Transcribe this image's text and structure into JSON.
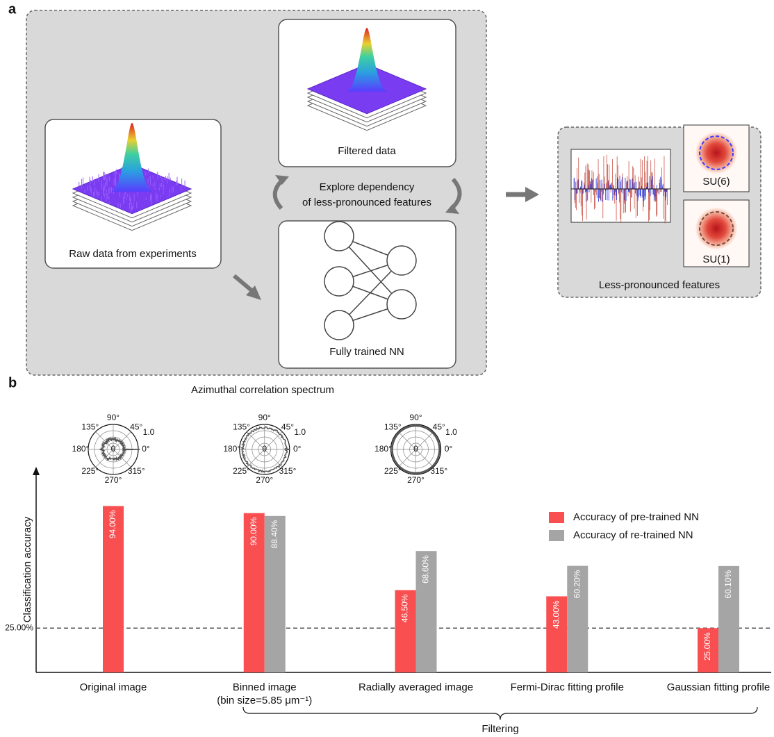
{
  "panel_a": {
    "label": "a",
    "raw_data": "Raw data from experiments",
    "filtered_data": "Filtered data",
    "explore": [
      "Explore dependency",
      "of less-pronounced features"
    ],
    "network": "Fully trained NN",
    "features_title": "Less-pronounced features",
    "su6": "SU(6)",
    "su1": "SU(1)"
  },
  "chart_data": {
    "type": "bar",
    "panel_label": "b",
    "title": "Azimuthal correlation spectrum",
    "y_label": "Classification accuracy",
    "categories": [
      "Original image",
      "Binned image",
      "Radially averaged image",
      "Fermi-Dirac fitting profile",
      "Gaussian fitting profile"
    ],
    "category_notes": [
      null,
      "(bin size=5.85 μm⁻¹)",
      null,
      null,
      null
    ],
    "series": [
      {
        "name": "Accuracy of pre-trained NN",
        "color": "#f94f51",
        "values": [
          94,
          90,
          46.5,
          43,
          25
        ],
        "value_labels": [
          "94.00%",
          "90.00%",
          "46.50%",
          "43.00%",
          "25.00%"
        ]
      },
      {
        "name": "Accuracy of re-trained NN",
        "color": "#a5a5a5",
        "values": [
          null,
          88.4,
          68.6,
          60.2,
          60.1
        ],
        "value_labels": [
          null,
          "88.40%",
          "68.60%",
          "60.20%",
          "60.10%"
        ]
      }
    ],
    "ylim": [
      0,
      115
    ],
    "reference_line": {
      "value": 25,
      "label": "25.00%"
    },
    "group_label": "Filtering",
    "polar": {
      "angle_labels": [
        "0°",
        "45°",
        "90°",
        "135°",
        "180°",
        "225°",
        "270°",
        "315°"
      ],
      "radial_labels": [
        "0",
        "1.0"
      ]
    }
  }
}
